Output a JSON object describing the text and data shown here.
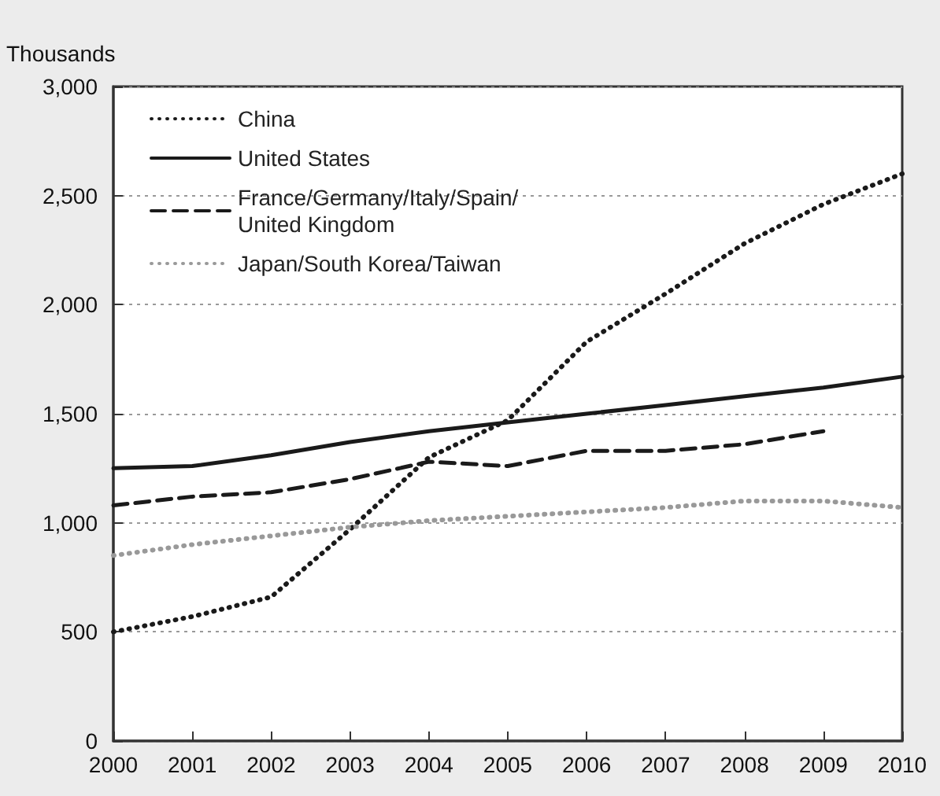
{
  "chart_data": {
    "type": "line",
    "ylabel": "Thousands",
    "categories": [
      "2000",
      "2001",
      "2002",
      "2003",
      "2004",
      "2005",
      "2006",
      "2007",
      "2008",
      "2009",
      "2010"
    ],
    "series": [
      {
        "name": "China",
        "color": "#1a1a1a",
        "line_style": "dotted",
        "values": [
          500,
          570,
          660,
          970,
          1300,
          1470,
          1830,
          2050,
          2280,
          2460,
          2600
        ]
      },
      {
        "name": "United States",
        "color": "#1a1a1a",
        "line_style": "solid",
        "values": [
          1250,
          1260,
          1310,
          1370,
          1420,
          1460,
          1500,
          1540,
          1580,
          1620,
          1670
        ]
      },
      {
        "name": "France/Germany/Italy/Spain/\nUnited Kingdom",
        "color": "#1a1a1a",
        "line_style": "dashed",
        "values": [
          1080,
          1120,
          1140,
          1200,
          1280,
          1260,
          1330,
          1330,
          1360,
          1420,
          null
        ]
      },
      {
        "name": "Japan/South Korea/Taiwan",
        "color": "#999999",
        "line_style": "dotted",
        "values": [
          850,
          900,
          940,
          980,
          1010,
          1030,
          1050,
          1070,
          1100,
          1100,
          1070
        ]
      }
    ],
    "ylim": [
      0,
      3000
    ],
    "yticks": [
      0,
      {
        "value": 500,
        "label": "500"
      },
      {
        "value": 1000,
        "label": "1,000"
      },
      {
        "value": 1500,
        "label": "1,500"
      },
      {
        "value": 2000,
        "label": "2,000"
      },
      {
        "value": 2500,
        "label": "2,500"
      },
      {
        "value": 3000,
        "label": "3,000"
      }
    ],
    "grid": "y",
    "legend": "top left",
    "marker": "none"
  }
}
